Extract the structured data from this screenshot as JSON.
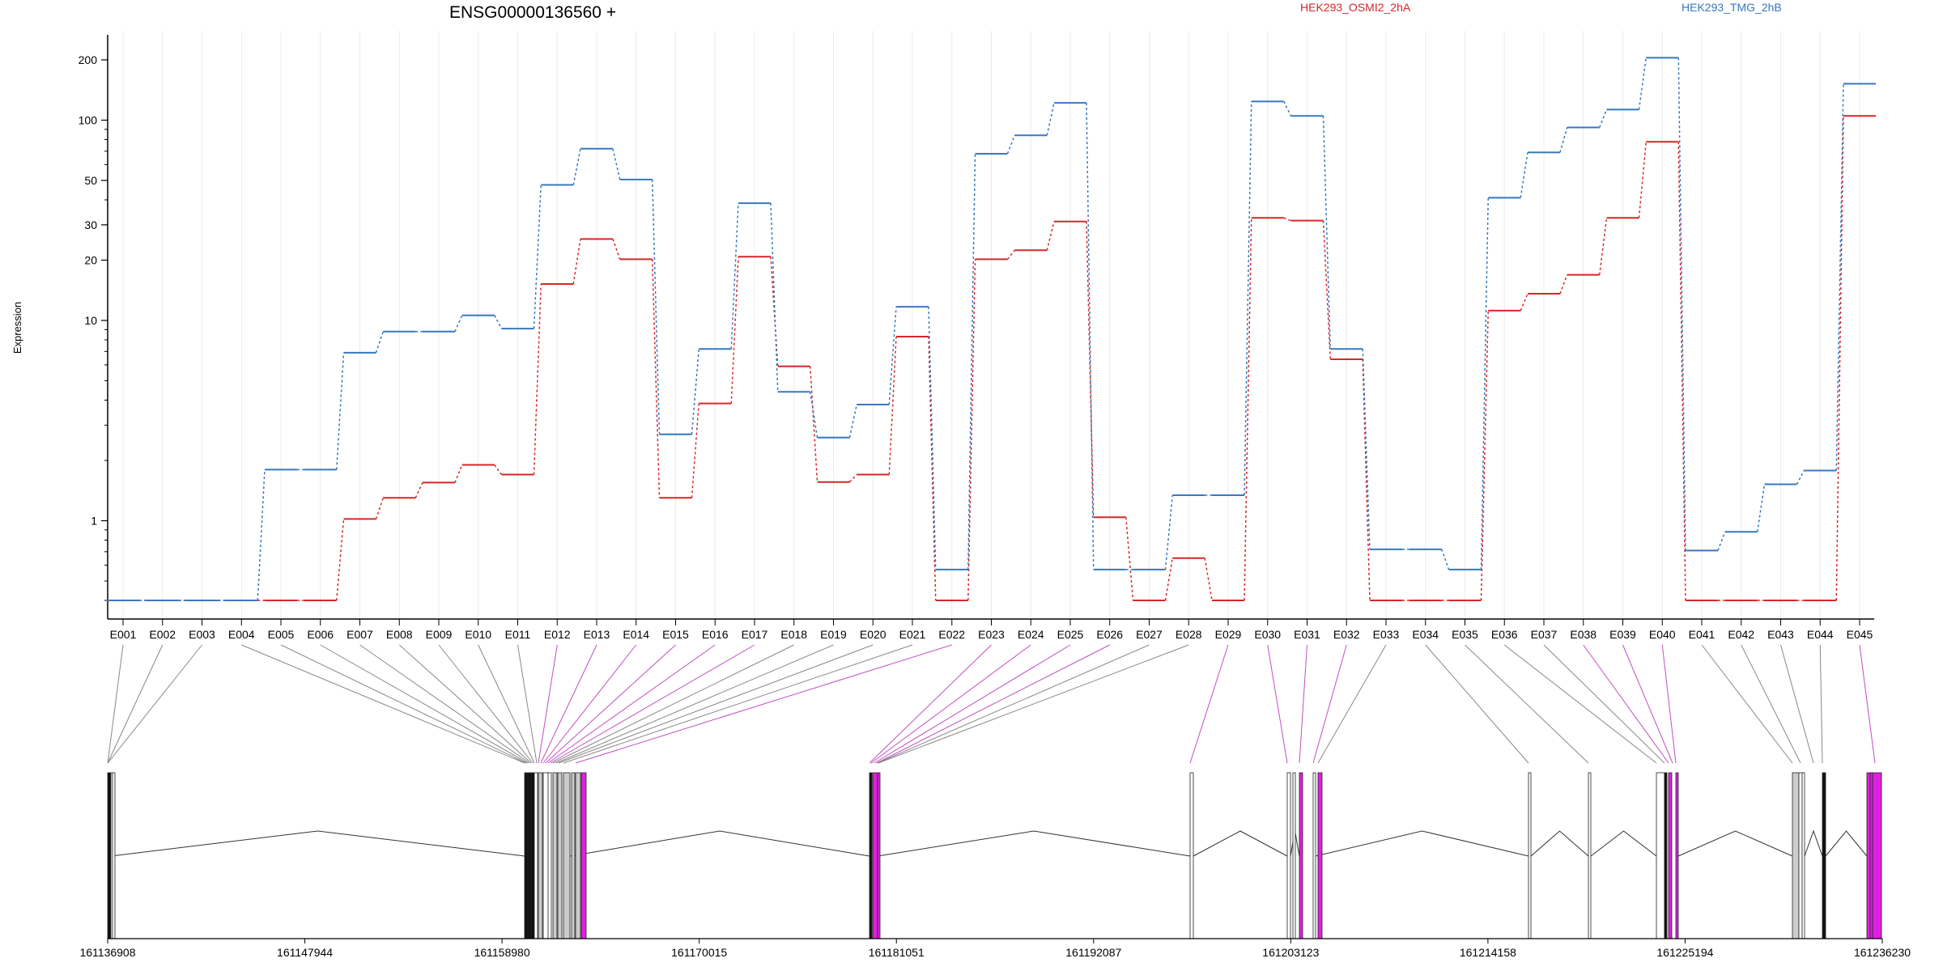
{
  "chart_data": {
    "type": "line",
    "title": "ENSG00000136560 +",
    "ylabel": "Expression",
    "y_scale": "log",
    "ylim": [
      0.4,
      250
    ],
    "y_ticks": [
      1,
      10,
      20,
      30,
      50,
      100,
      200
    ],
    "y_tick_labels": [
      "1",
      "10",
      "20",
      "30",
      "50",
      "100",
      "200"
    ],
    "categories": [
      "E001",
      "E002",
      "E003",
      "E004",
      "E005",
      "E006",
      "E007",
      "E008",
      "E009",
      "E010",
      "E011",
      "E012",
      "E013",
      "E014",
      "E015",
      "E016",
      "E017",
      "E018",
      "E019",
      "E020",
      "E021",
      "E022",
      "E023",
      "E024",
      "E025",
      "E026",
      "E027",
      "E028",
      "E029",
      "E030",
      "E031",
      "E032",
      "E033",
      "E034",
      "E035",
      "E036",
      "E037",
      "E038",
      "E039",
      "E040",
      "E041",
      "E042",
      "E043",
      "E044",
      "E045"
    ],
    "series": [
      {
        "name": "HEK293_OSMI2_2hA",
        "color": "#d62728",
        "values": [
          0.4,
          0.4,
          0.4,
          0.4,
          0.4,
          0.4,
          1.02,
          1.3,
          1.55,
          1.9,
          1.7,
          15.2,
          25.5,
          20.2,
          1.3,
          3.85,
          20.8,
          5.9,
          1.56,
          1.7,
          8.3,
          0.4,
          20.2,
          22.4,
          31.2,
          1.04,
          0.4,
          0.65,
          0.4,
          32.5,
          31.5,
          6.4,
          0.4,
          0.4,
          0.4,
          11.2,
          13.6,
          16.9,
          32.5,
          78.0,
          0.4,
          0.4,
          0.4,
          0.4,
          105.0
        ]
      },
      {
        "name": "HEK293_TMG_2hB",
        "color": "#3778bf",
        "values": [
          0.4,
          0.4,
          0.4,
          0.4,
          1.8,
          1.8,
          6.9,
          8.8,
          8.8,
          10.6,
          9.1,
          47.5,
          72.0,
          50.5,
          2.7,
          7.2,
          38.5,
          4.4,
          2.6,
          3.8,
          11.7,
          0.57,
          68.0,
          84.0,
          122.0,
          0.57,
          0.57,
          1.34,
          1.34,
          124.0,
          105.0,
          7.2,
          0.72,
          0.72,
          0.57,
          41.0,
          69.0,
          92.0,
          113.0,
          205.0,
          0.71,
          0.88,
          1.52,
          1.78,
          152.0
        ]
      }
    ],
    "x_genomic_ticks": [
      "161136908",
      "161147944",
      "161158980",
      "161170015",
      "161181051",
      "161192087",
      "161203123",
      "161214158",
      "161225194",
      "161236230"
    ],
    "exon_colors": {
      "normal": "#ffffff",
      "intron_like": "#c8c8c8",
      "significant": "#e020e0",
      "connector": "#888888",
      "significant_connector": "#c050c0"
    },
    "significant_exons": [
      "E012",
      "E013",
      "E014",
      "E015",
      "E016",
      "E017",
      "E022",
      "E023",
      "E024",
      "E025",
      "E026",
      "E029",
      "E030",
      "E031",
      "E032",
      "E038",
      "E039",
      "E040",
      "E045"
    ]
  }
}
